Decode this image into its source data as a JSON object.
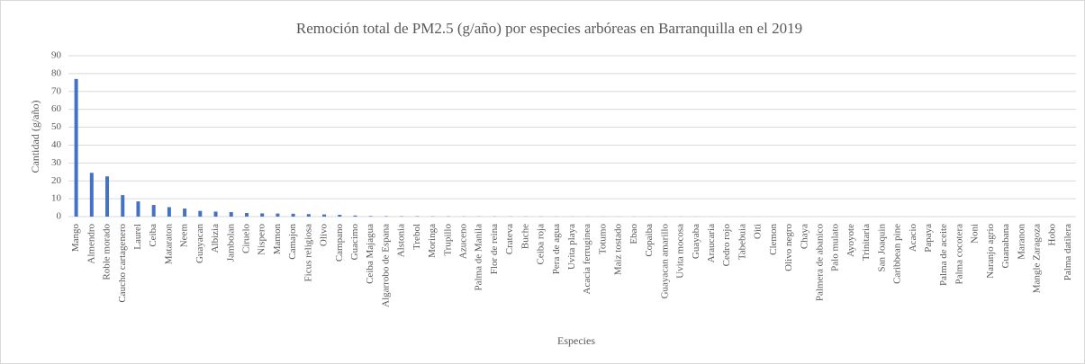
{
  "chart_data": {
    "type": "bar",
    "title": "Remoción total de PM2.5 (g/año) por especies arbóreas  en Barranquilla  en el 2019",
    "x_label": "Especies",
    "y_label": "Cantidad (g/año)",
    "categories": [
      "Mango",
      "Almendro",
      "Roble morado",
      "Caucho cartagenero",
      "Laurel",
      "Ceiba",
      "Mataraton",
      "Neem",
      "Guayacan",
      "Albizia",
      "Jambolan",
      "Ciruelo",
      "Nispero",
      "Mamon",
      "Camajon",
      "Ficus religiosa",
      "Olivo",
      "Campano",
      "Guacimo",
      "Ceiba Majagua",
      "Algarrobo de Espana",
      "Alstonia",
      "Trebol",
      "Moringa",
      "Trupillo",
      "Azuceno",
      "Palma de Manila",
      "Flor de reina",
      "Crateva",
      "Buche",
      "Ceiba roja",
      "Pera de agua",
      "Uvita playa",
      "Acacia ferruginea",
      "Totumo",
      "Maiz tostado",
      "Ebao",
      "Copaiba",
      "Guayacan amarillo",
      "Uvita mocosa",
      "Guayaba",
      "Araucaria",
      "Cedro rojo",
      "Tabebuia",
      "Oiti",
      "Clemon",
      "Olivo negro",
      "Chaya",
      "Palmera de abanico",
      "Palo mulato",
      "Ayoyote",
      "Trinitaria",
      "San Joaquin",
      "Caribbean pine",
      "Acacio",
      "Papaya",
      "Palma de aceite",
      "Palma cocotera",
      "Noni",
      "Naranjo agrio",
      "Guanabana",
      "Maranon",
      "Mangle Zaragoza",
      "Hobo",
      "Palma datilera"
    ],
    "values": [
      77,
      24.5,
      22.5,
      12,
      8.5,
      6.5,
      5.3,
      4.5,
      3.2,
      2.8,
      2.5,
      2.0,
      1.8,
      1.7,
      1.6,
      1.4,
      1.2,
      1.0,
      0.6,
      0.3,
      0.25,
      0.2,
      0.2,
      0.15,
      0.15,
      0.1,
      0.1,
      0.1,
      0.1,
      0.08,
      0.08,
      0.07,
      0.07,
      0.06,
      0.06,
      0.05,
      0.05,
      0.05,
      0.04,
      0.04,
      0.04,
      0.03,
      0.03,
      0.03,
      0.03,
      0.02,
      0.02,
      0.02,
      0.02,
      0.02,
      0.01,
      0.01,
      0.01,
      0.01,
      0.01,
      0.01,
      0.01,
      0.01,
      0.01,
      0.01,
      0.01,
      0.01,
      0.01,
      0.01,
      0.01
    ],
    "color": "#4472c4",
    "ylim": [
      0,
      90
    ],
    "yticks": [
      0,
      10,
      20,
      30,
      40,
      50,
      60,
      70,
      80,
      90
    ],
    "grid": true
  }
}
